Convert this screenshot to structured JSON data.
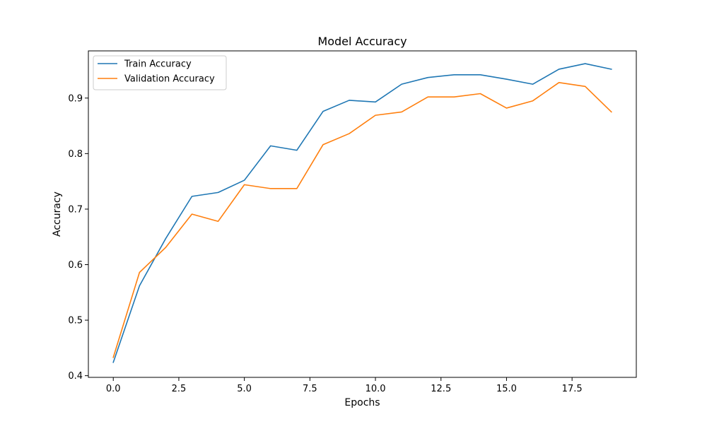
{
  "chart_data": {
    "type": "line",
    "title": "Model Accuracy",
    "xlabel": "Epochs",
    "ylabel": "Accuracy",
    "x": [
      0,
      1,
      2,
      3,
      4,
      5,
      6,
      7,
      8,
      9,
      10,
      11,
      12,
      13,
      14,
      15,
      16,
      17,
      18,
      19
    ],
    "xlim": [
      -0.95,
      19.95
    ],
    "ylim": [
      0.397,
      0.985
    ],
    "xticks": [
      0.0,
      2.5,
      5.0,
      7.5,
      10.0,
      12.5,
      15.0,
      17.5
    ],
    "xtick_labels": [
      "0.0",
      "2.5",
      "5.0",
      "7.5",
      "10.0",
      "12.5",
      "15.0",
      "17.5"
    ],
    "yticks": [
      0.4,
      0.5,
      0.6,
      0.7,
      0.8,
      0.9
    ],
    "ytick_labels": [
      "0.4",
      "0.5",
      "0.6",
      "0.7",
      "0.8",
      "0.9"
    ],
    "grid": false,
    "legend_position": "upper left",
    "series": [
      {
        "name": "Train Accuracy",
        "color": "#1f77b4",
        "values": [
          0.424,
          0.562,
          0.647,
          0.723,
          0.73,
          0.752,
          0.814,
          0.806,
          0.876,
          0.896,
          0.893,
          0.925,
          0.937,
          0.942,
          0.942,
          0.934,
          0.925,
          0.952,
          0.962,
          0.952
        ]
      },
      {
        "name": "Validation Accuracy",
        "color": "#ff7f0e",
        "values": [
          0.433,
          0.586,
          0.631,
          0.691,
          0.678,
          0.744,
          0.737,
          0.737,
          0.816,
          0.836,
          0.869,
          0.875,
          0.902,
          0.902,
          0.908,
          0.882,
          0.895,
          0.928,
          0.921,
          0.875
        ]
      }
    ]
  }
}
